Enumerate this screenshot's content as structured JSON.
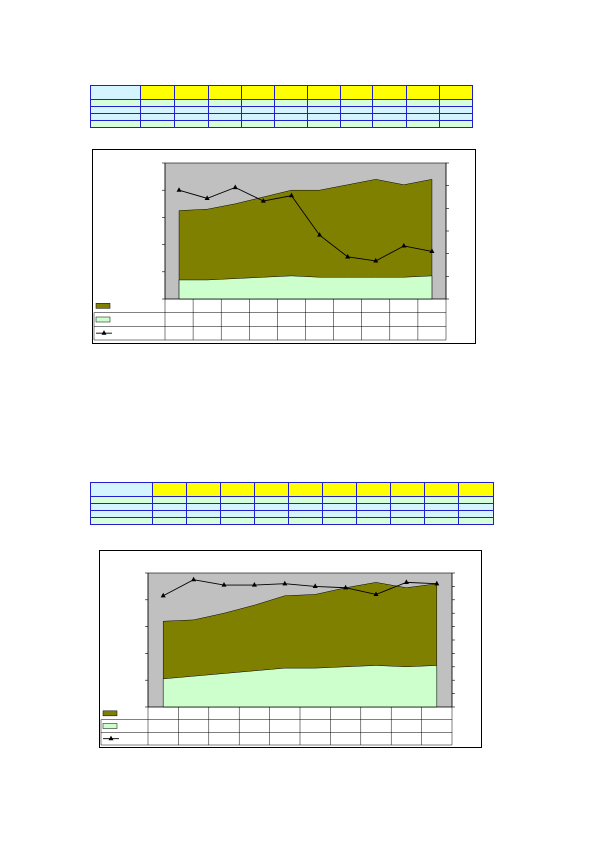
{
  "tables": [
    {
      "columns": [
        "",
        "",
        "",
        "",
        "",
        "",
        "",
        "",
        "",
        "",
        ""
      ],
      "rows": 4
    },
    {
      "columns": [
        "",
        "",
        "",
        "",
        "",
        "",
        "",
        "",
        "",
        "",
        ""
      ],
      "rows": 4
    }
  ],
  "chart_data": [
    {
      "type": "area",
      "categories": [
        "",
        "",
        "",
        "",
        "",
        "",
        "",
        "",
        "",
        ""
      ],
      "ylim": [
        0,
        100
      ],
      "y2lim": [
        0,
        100
      ],
      "grid": false,
      "legend": "table-below",
      "series": [
        {
          "type": "area",
          "color": "#808000",
          "values": [
            65,
            66,
            70,
            75,
            80,
            80,
            84,
            88,
            84,
            88
          ]
        },
        {
          "type": "area",
          "color": "#ccffcc",
          "values": [
            14,
            14,
            15,
            16,
            17,
            16,
            16,
            16,
            16,
            17
          ]
        },
        {
          "type": "line",
          "axis": "secondary",
          "color": "#000000",
          "values": [
            80,
            74,
            82,
            72,
            76,
            47,
            31,
            28,
            39,
            35
          ]
        }
      ]
    },
    {
      "type": "area",
      "categories": [
        "",
        "",
        "",
        "",
        "",
        "",
        "",
        "",
        "",
        ""
      ],
      "ylim": [
        0,
        100
      ],
      "y2lim": [
        0,
        100
      ],
      "grid": false,
      "legend": "table-below",
      "series": [
        {
          "type": "area",
          "color": "#808000",
          "values": [
            64,
            65,
            70,
            76,
            83,
            84,
            89,
            93,
            89,
            92
          ]
        },
        {
          "type": "area",
          "color": "#ccffcc",
          "values": [
            21,
            23,
            25,
            27,
            29,
            29,
            30,
            31,
            30,
            31
          ]
        },
        {
          "type": "line",
          "axis": "secondary",
          "color": "#000000",
          "values": [
            83,
            95,
            91,
            91,
            92,
            90,
            89,
            84,
            93,
            92
          ]
        }
      ]
    }
  ]
}
